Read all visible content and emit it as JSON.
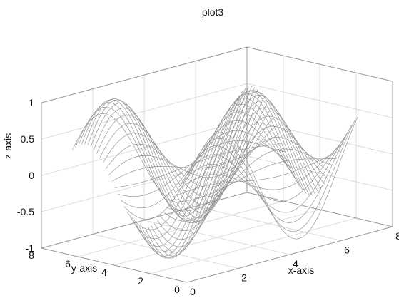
{
  "chart_data": {
    "type": "line3d",
    "title": "plot3",
    "xlabel": "x-axis",
    "ylabel": "y-axis",
    "zlabel": "z-axis",
    "xlim": [
      0,
      8
    ],
    "ylim": [
      0,
      8
    ],
    "zlim": [
      -1,
      1
    ],
    "xticks": [
      0,
      2,
      4,
      6,
      8
    ],
    "yticks": [
      0,
      2,
      4,
      6,
      8
    ],
    "zticks": [
      -1,
      -0.5,
      0,
      0.5,
      1
    ],
    "xtick_labels": [
      "0",
      "2",
      "4",
      "6",
      "8"
    ],
    "ytick_labels": [
      "0",
      "2",
      "4",
      "6",
      "8"
    ],
    "ztick_labels": [
      "-1",
      "-0.5",
      "0",
      "0.5",
      "1"
    ],
    "grid": true,
    "surface_function": "z = sin(x) * cos(y)",
    "x_range": [
      0.5,
      7.0
    ],
    "y_range": [
      0.5,
      7.0
    ],
    "line_count": 40,
    "line_color": "#8a8a8a"
  }
}
